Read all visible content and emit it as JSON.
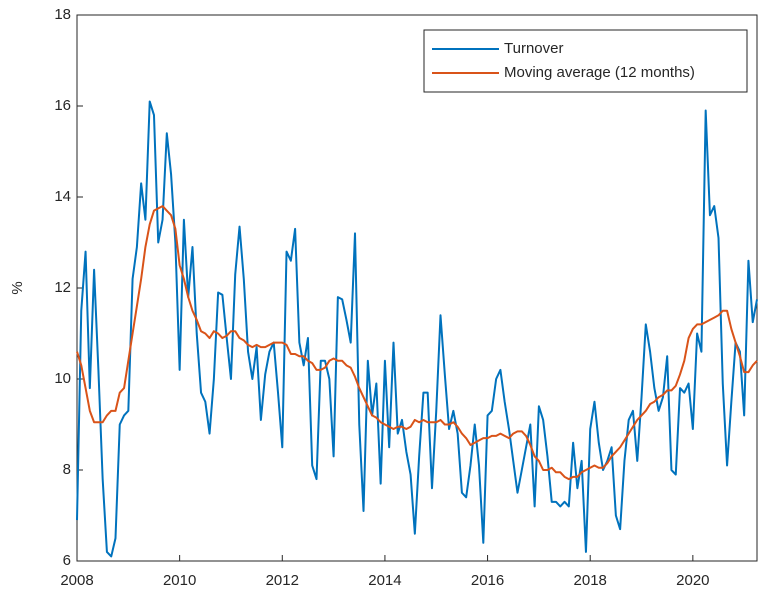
{
  "chart_data": {
    "type": "line",
    "ylabel": "%",
    "x": [
      2008,
      2008.083,
      2008.167,
      2008.25,
      2008.333,
      2008.417,
      2008.5,
      2008.583,
      2008.667,
      2008.75,
      2008.833,
      2008.917,
      2009,
      2009.083,
      2009.167,
      2009.25,
      2009.333,
      2009.417,
      2009.5,
      2009.583,
      2009.667,
      2009.75,
      2009.833,
      2009.917,
      2010,
      2010.083,
      2010.167,
      2010.25,
      2010.333,
      2010.417,
      2010.5,
      2010.583,
      2010.667,
      2010.75,
      2010.833,
      2010.917,
      2011,
      2011.083,
      2011.167,
      2011.25,
      2011.333,
      2011.417,
      2011.5,
      2011.583,
      2011.667,
      2011.75,
      2011.833,
      2011.917,
      2012,
      2012.083,
      2012.167,
      2012.25,
      2012.333,
      2012.417,
      2012.5,
      2012.583,
      2012.667,
      2012.75,
      2012.833,
      2012.917,
      2013,
      2013.083,
      2013.167,
      2013.25,
      2013.333,
      2013.417,
      2013.5,
      2013.583,
      2013.667,
      2013.75,
      2013.833,
      2013.917,
      2014,
      2014.083,
      2014.167,
      2014.25,
      2014.333,
      2014.417,
      2014.5,
      2014.583,
      2014.667,
      2014.75,
      2014.833,
      2014.917,
      2015,
      2015.083,
      2015.167,
      2015.25,
      2015.333,
      2015.417,
      2015.5,
      2015.583,
      2015.667,
      2015.75,
      2015.833,
      2015.917,
      2016,
      2016.083,
      2016.167,
      2016.25,
      2016.333,
      2016.417,
      2016.5,
      2016.583,
      2016.667,
      2016.75,
      2016.833,
      2016.917,
      2017,
      2017.083,
      2017.167,
      2017.25,
      2017.333,
      2017.417,
      2017.5,
      2017.583,
      2017.667,
      2017.75,
      2017.833,
      2017.917,
      2018,
      2018.083,
      2018.167,
      2018.25,
      2018.333,
      2018.417,
      2018.5,
      2018.583,
      2018.667,
      2018.75,
      2018.833,
      2018.917,
      2019,
      2019.083,
      2019.167,
      2019.25,
      2019.333,
      2019.417,
      2019.5,
      2019.583,
      2019.667,
      2019.75,
      2019.833,
      2019.917,
      2020,
      2020.083,
      2020.167,
      2020.25,
      2020.333,
      2020.417,
      2020.5,
      2020.583,
      2020.667,
      2020.75,
      2020.833,
      2020.917,
      2021,
      2021.083,
      2021.167,
      2021.25
    ],
    "series": [
      {
        "name": "Turnover",
        "color": "#0072BD",
        "values": [
          6.9,
          11.5,
          12.8,
          9.8,
          12.4,
          10.2,
          7.8,
          6.2,
          6.1,
          6.5,
          9.0,
          9.2,
          9.3,
          12.2,
          12.9,
          14.3,
          13.5,
          16.1,
          15.8,
          13.0,
          13.5,
          15.4,
          14.5,
          13.0,
          10.2,
          13.5,
          11.8,
          12.9,
          11.0,
          9.7,
          9.5,
          8.8,
          10.0,
          11.9,
          11.85,
          10.9,
          10.0,
          12.3,
          13.35,
          12.2,
          10.6,
          10.0,
          10.7,
          9.1,
          10.1,
          10.6,
          10.8,
          9.7,
          8.5,
          12.8,
          12.6,
          13.3,
          10.8,
          10.3,
          10.9,
          8.1,
          7.8,
          10.4,
          10.4,
          10.0,
          8.3,
          11.8,
          11.75,
          11.3,
          10.8,
          13.2,
          9.0,
          7.1,
          10.4,
          9.2,
          9.9,
          7.7,
          10.4,
          8.5,
          10.8,
          8.8,
          9.1,
          8.4,
          7.9,
          6.6,
          8.3,
          9.7,
          9.7,
          7.6,
          9.3,
          11.4,
          10.1,
          8.9,
          9.3,
          8.8,
          7.5,
          7.4,
          8.1,
          9.0,
          8.1,
          6.4,
          9.2,
          9.3,
          10.0,
          10.2,
          9.5,
          8.9,
          8.2,
          7.5,
          8.0,
          8.5,
          9.0,
          7.2,
          9.4,
          9.1,
          8.3,
          7.3,
          7.3,
          7.2,
          7.3,
          7.2,
          8.6,
          7.6,
          8.2,
          6.2,
          8.9,
          9.5,
          8.6,
          8.0,
          8.2,
          8.5,
          7.0,
          6.7,
          8.2,
          9.1,
          9.3,
          8.2,
          9.6,
          11.2,
          10.6,
          9.8,
          9.3,
          9.6,
          10.5,
          8.0,
          7.9,
          9.8,
          9.7,
          9.9,
          8.9,
          11.0,
          10.6,
          15.9,
          13.6,
          13.8,
          13.1,
          9.9,
          8.1,
          9.5,
          10.8,
          10.6,
          9.2,
          12.6,
          11.25,
          11.75
        ]
      },
      {
        "name": "Moving average (12 months)",
        "color": "#D95319",
        "values": [
          10.6,
          10.3,
          9.8,
          9.3,
          9.05,
          9.05,
          9.05,
          9.2,
          9.3,
          9.3,
          9.7,
          9.8,
          10.4,
          11.0,
          11.6,
          12.2,
          12.9,
          13.4,
          13.7,
          13.75,
          13.8,
          13.7,
          13.6,
          13.3,
          12.5,
          12.2,
          11.8,
          11.5,
          11.3,
          11.05,
          11.0,
          10.9,
          11.05,
          11.0,
          10.9,
          10.95,
          11.05,
          11.05,
          10.9,
          10.85,
          10.75,
          10.7,
          10.75,
          10.7,
          10.7,
          10.75,
          10.8,
          10.8,
          10.8,
          10.75,
          10.55,
          10.55,
          10.5,
          10.5,
          10.4,
          10.35,
          10.2,
          10.2,
          10.25,
          10.4,
          10.45,
          10.4,
          10.4,
          10.3,
          10.25,
          10.05,
          9.8,
          9.6,
          9.4,
          9.2,
          9.15,
          9.05,
          9.0,
          8.95,
          8.9,
          8.95,
          8.95,
          8.9,
          8.95,
          9.1,
          9.05,
          9.1,
          9.05,
          9.05,
          9.05,
          9.1,
          9.0,
          9.0,
          9.05,
          8.95,
          8.8,
          8.7,
          8.55,
          8.6,
          8.65,
          8.7,
          8.7,
          8.75,
          8.75,
          8.8,
          8.75,
          8.7,
          8.8,
          8.85,
          8.85,
          8.75,
          8.55,
          8.3,
          8.2,
          8.0,
          8.0,
          8.05,
          7.95,
          7.95,
          7.85,
          7.8,
          7.85,
          7.85,
          7.95,
          8.0,
          8.05,
          8.1,
          8.05,
          8.05,
          8.15,
          8.3,
          8.4,
          8.5,
          8.65,
          8.8,
          8.95,
          9.1,
          9.2,
          9.3,
          9.45,
          9.5,
          9.6,
          9.65,
          9.75,
          9.75,
          9.85,
          10.1,
          10.4,
          10.9,
          11.1,
          11.2,
          11.2,
          11.25,
          11.3,
          11.35,
          11.4,
          11.5,
          11.5,
          11.1,
          10.8,
          10.5,
          10.15,
          10.15,
          10.3,
          10.4
        ]
      }
    ],
    "xlim": [
      2008,
      2021.25
    ],
    "ylim": [
      6,
      18
    ],
    "xticks": [
      2008,
      2010,
      2012,
      2014,
      2016,
      2018,
      2020
    ],
    "yticks": [
      6,
      8,
      10,
      12,
      14,
      16,
      18
    ],
    "legend": "upper right"
  }
}
